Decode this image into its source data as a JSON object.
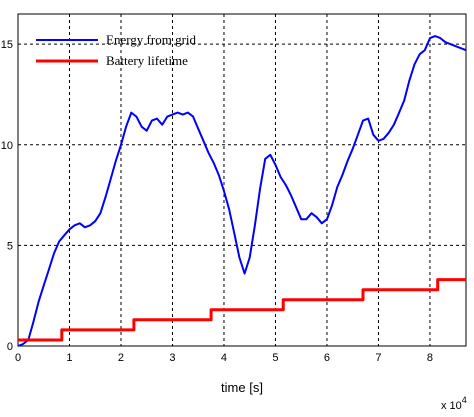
{
  "chart_data": {
    "type": "line",
    "xlabel": "time [s]",
    "x_multiplier_label": "x 10",
    "x_multiplier_exponent": "4",
    "xlim": [
      0,
      87000
    ],
    "ylim": [
      0,
      16.5
    ],
    "x_ticks": [
      0,
      10000,
      20000,
      30000,
      40000,
      50000,
      60000,
      70000,
      80000
    ],
    "x_tick_labels": [
      "0",
      "1",
      "2",
      "3",
      "4",
      "5",
      "6",
      "7",
      "8"
    ],
    "y_ticks": [
      0,
      5,
      10,
      15
    ],
    "y_tick_labels": [
      "0",
      "5",
      "10",
      "15"
    ],
    "grid": true,
    "legend_position": "top-left",
    "series": [
      {
        "name": "Energy from grid",
        "color": "#0000ff",
        "x": [
          0,
          1000,
          2000,
          3000,
          4000,
          5000,
          6000,
          7000,
          8000,
          9000,
          10000,
          11000,
          12000,
          13000,
          14000,
          15000,
          16000,
          17000,
          18000,
          19000,
          20000,
          21000,
          22000,
          23000,
          24000,
          25000,
          26000,
          27000,
          28000,
          29000,
          30000,
          31000,
          32000,
          33000,
          34000,
          35000,
          36000,
          37000,
          38000,
          39000,
          40000,
          41000,
          42000,
          43000,
          44000,
          45000,
          46000,
          47000,
          48000,
          49000,
          50000,
          51000,
          52000,
          53000,
          54000,
          55000,
          56000,
          57000,
          58000,
          59000,
          60000,
          61000,
          62000,
          63000,
          64000,
          65000,
          66000,
          67000,
          68000,
          69000,
          70000,
          71000,
          72000,
          73000,
          74000,
          75000,
          76000,
          77000,
          78000,
          79000,
          80000,
          81000,
          82000,
          83000,
          84000,
          85000,
          86000,
          87000
        ],
        "values": [
          0.0,
          0.1,
          0.3,
          1.2,
          2.2,
          3.0,
          3.8,
          4.6,
          5.2,
          5.5,
          5.8,
          6.0,
          6.1,
          5.9,
          6.0,
          6.2,
          6.6,
          7.4,
          8.3,
          9.2,
          10.0,
          10.9,
          11.6,
          11.4,
          10.9,
          10.7,
          11.2,
          11.3,
          11.0,
          11.4,
          11.5,
          11.6,
          11.5,
          11.6,
          11.4,
          10.8,
          10.2,
          9.6,
          9.1,
          8.5,
          7.7,
          6.8,
          5.6,
          4.4,
          3.6,
          4.4,
          6.0,
          7.8,
          9.3,
          9.5,
          9.0,
          8.4,
          8.0,
          7.5,
          6.9,
          6.3,
          6.3,
          6.6,
          6.4,
          6.1,
          6.3,
          7.0,
          7.9,
          8.5,
          9.2,
          9.8,
          10.5,
          11.2,
          11.3,
          10.5,
          10.2,
          10.3,
          10.6,
          11.0,
          11.6,
          12.2,
          13.2,
          14.0,
          14.5,
          14.7,
          15.3,
          15.4,
          15.3,
          15.1,
          15.0,
          14.9,
          14.8,
          14.7
        ]
      },
      {
        "name": "Battery lifetime",
        "color": "#ff0000",
        "x": [
          0,
          8500,
          8500,
          22500,
          22500,
          37500,
          37500,
          51500,
          51500,
          67000,
          67000,
          81500,
          81500,
          87000
        ],
        "values": [
          0.3,
          0.3,
          0.8,
          0.8,
          1.3,
          1.3,
          1.8,
          1.8,
          2.3,
          2.3,
          2.8,
          2.8,
          3.3,
          3.3
        ]
      }
    ]
  }
}
